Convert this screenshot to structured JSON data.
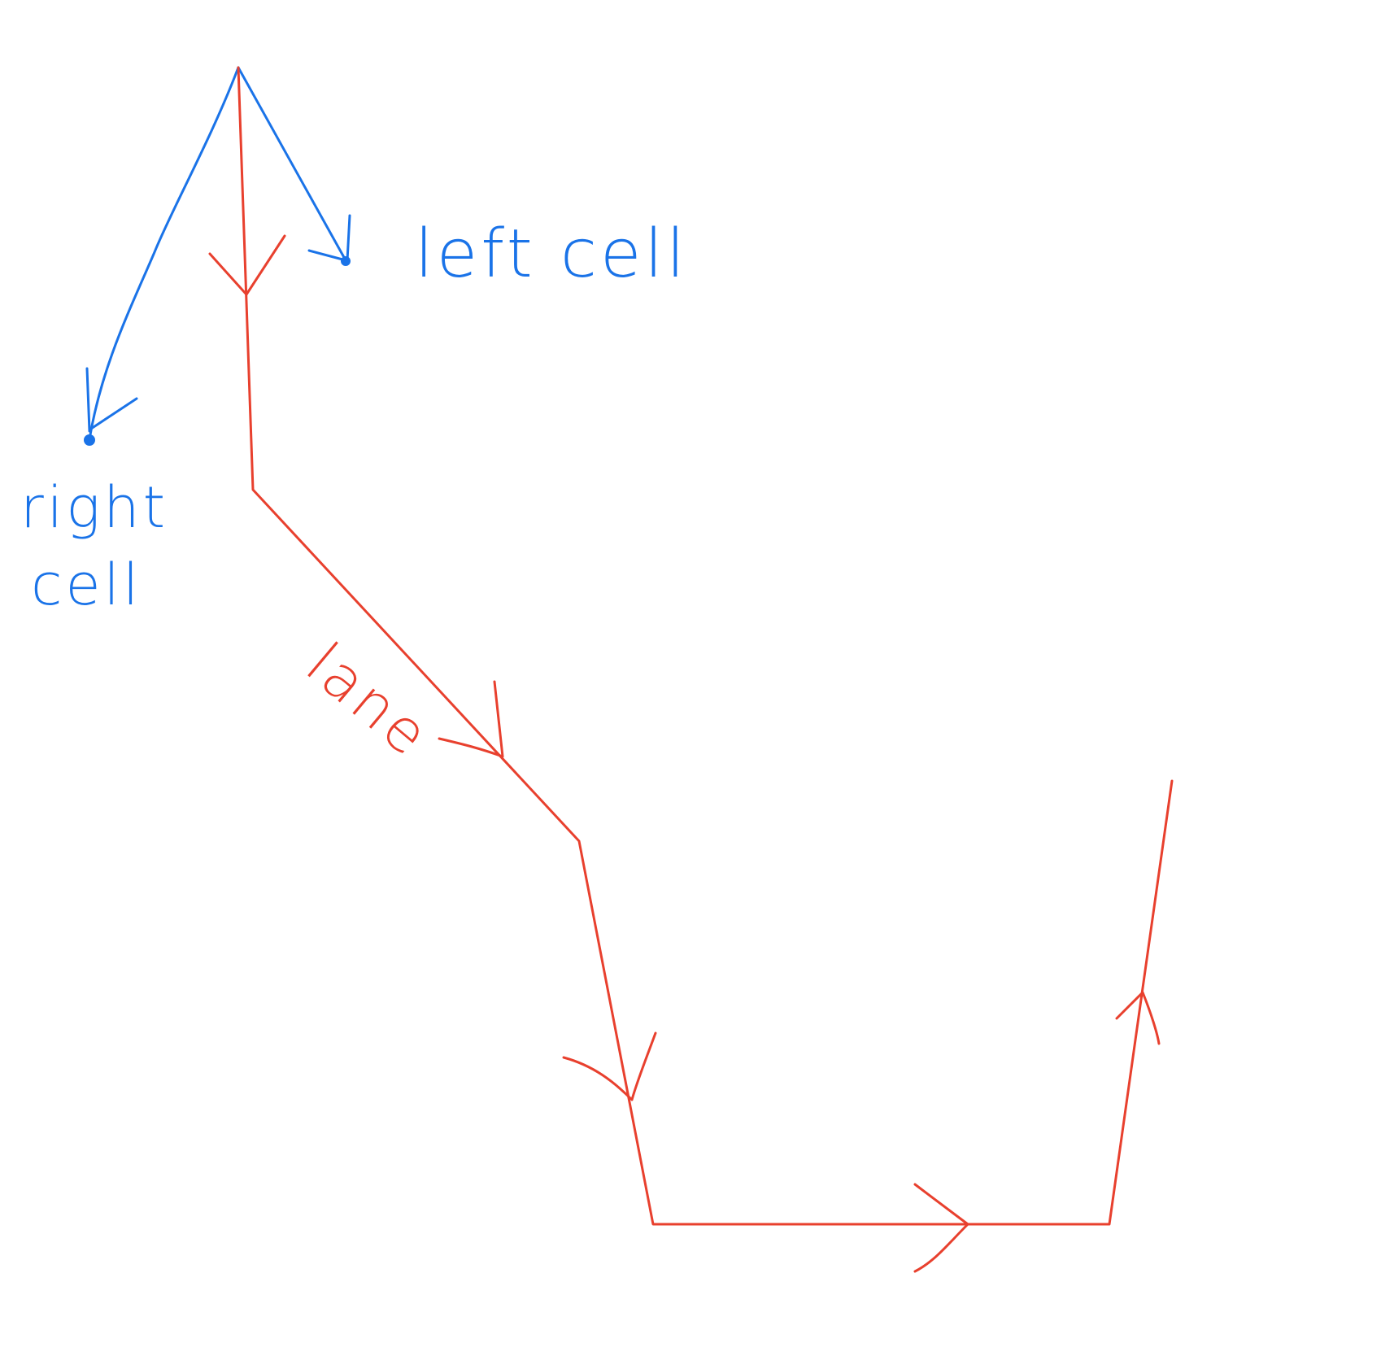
{
  "labels": {
    "left_cell": "left cell",
    "right_cell_line1": "right",
    "right_cell_line2": "cell",
    "lane": "lane"
  },
  "colors": {
    "cell_pointers": "#1a73e8",
    "lane": "#e8402e",
    "background": "#ffffff"
  }
}
